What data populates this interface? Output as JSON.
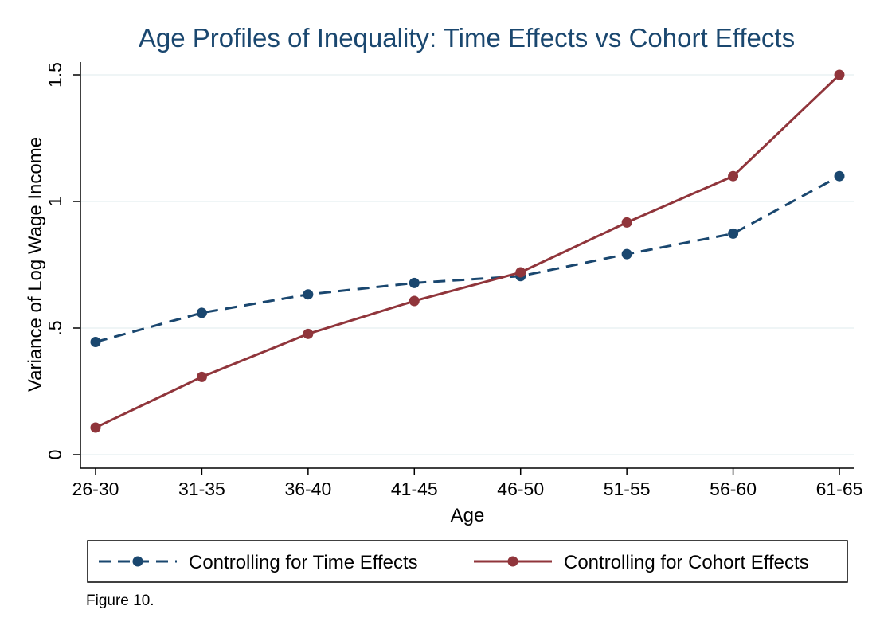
{
  "chart_data": {
    "type": "line",
    "title": "Age Profiles of Inequality: Time Effects vs Cohort Effects",
    "xlabel": "Age",
    "ylabel": "Variance of Log Wage Income",
    "categories": [
      "26-30",
      "31-35",
      "36-40",
      "41-45",
      "46-50",
      "51-55",
      "56-60",
      "61-65"
    ],
    "ylim": [
      0,
      1.5
    ],
    "yticks": [
      0,
      0.5,
      1,
      1.5
    ],
    "ytick_labels": [
      "0",
      ".5",
      "1",
      "1.5"
    ],
    "grid": true,
    "legend_placement": "bottom",
    "series": [
      {
        "name": "Controlling for Time Effects",
        "values": [
          0.445,
          0.56,
          0.633,
          0.678,
          0.705,
          0.792,
          0.873,
          1.1
        ],
        "color": "#1a476f",
        "line_style": "dashed",
        "marker": "circle"
      },
      {
        "name": "Controlling for Cohort Effects",
        "values": [
          0.107,
          0.307,
          0.477,
          0.607,
          0.72,
          0.917,
          1.1,
          1.5
        ],
        "color": "#90353b",
        "line_style": "solid",
        "marker": "circle"
      }
    ]
  },
  "note": "Figure 10."
}
